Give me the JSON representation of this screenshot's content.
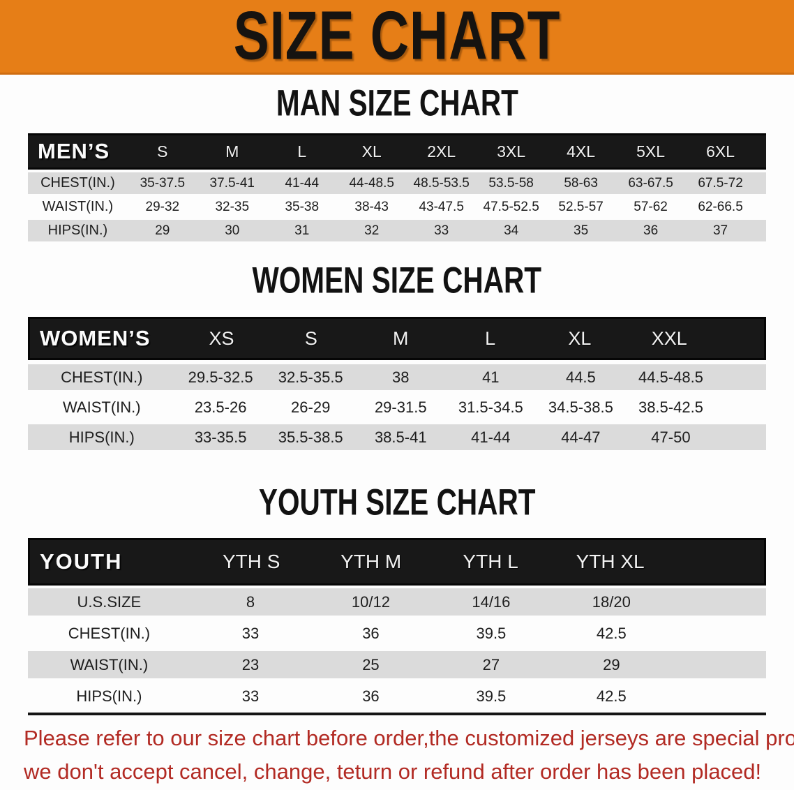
{
  "banner": {
    "title": "SIZE CHART",
    "bg_color": "#E67E17",
    "text_color": "#161310"
  },
  "sections": [
    {
      "heading": "MAN SIZE CHART",
      "table": {
        "label": "MEN’S",
        "columns": [
          "S",
          "M",
          "L",
          "XL",
          "2XL",
          "3XL",
          "4XL",
          "5XL",
          "6XL"
        ],
        "rows": [
          {
            "label": "CHEST(IN.)",
            "values": [
              "35-37.5",
              "37.5-41",
              "41-44",
              "44-48.5",
              "48.5-53.5",
              "53.5-58",
              "58-63",
              "63-67.5",
              "67.5-72"
            ]
          },
          {
            "label": "WAIST(IN.)",
            "values": [
              "29-32",
              "32-35",
              "35-38",
              "38-43",
              "43-47.5",
              "47.5-52.5",
              "52.5-57",
              "57-62",
              "62-66.5"
            ]
          },
          {
            "label": "HIPS(IN.)",
            "values": [
              "29",
              "30",
              "31",
              "32",
              "33",
              "34",
              "35",
              "36",
              "37"
            ]
          }
        ]
      }
    },
    {
      "heading": "WOMEN SIZE CHART",
      "table": {
        "label": "WOMEN’S",
        "columns": [
          "XS",
          "S",
          "M",
          "L",
          "XL",
          "XXL"
        ],
        "rows": [
          {
            "label": "CHEST(IN.)",
            "values": [
              "29.5-32.5",
              "32.5-35.5",
              "38",
              "41",
              "44.5",
              "44.5-48.5"
            ]
          },
          {
            "label": "WAIST(IN.)",
            "values": [
              "23.5-26",
              "26-29",
              "29-31.5",
              "31.5-34.5",
              "34.5-38.5",
              "38.5-42.5"
            ]
          },
          {
            "label": "HIPS(IN.)",
            "values": [
              "33-35.5",
              "35.5-38.5",
              "38.5-41",
              "41-44",
              "44-47",
              "47-50"
            ]
          }
        ]
      }
    },
    {
      "heading": "YOUTH SIZE CHART",
      "table": {
        "label": "YOUTH",
        "columns": [
          "YTH S",
          "YTH M",
          "YTH L",
          "YTH XL"
        ],
        "rows": [
          {
            "label": "U.S.SIZE",
            "values": [
              "8",
              "10/12",
              "14/16",
              "18/20"
            ]
          },
          {
            "label": "CHEST(IN.)",
            "values": [
              "33",
              "36",
              "39.5",
              "42.5"
            ]
          },
          {
            "label": "WAIST(IN.)",
            "values": [
              "23",
              "25",
              "27",
              "29"
            ]
          },
          {
            "label": "HIPS(IN.)",
            "values": [
              "33",
              "36",
              "39.5",
              "42.5"
            ]
          }
        ]
      }
    }
  ],
  "disclaimer": {
    "line1": "Please refer to our size chart before order,the customized jerseys are special products,",
    "line2": "we don't accept cancel, change, teturn or refund after order has been placed!",
    "color": "#B22A23"
  }
}
